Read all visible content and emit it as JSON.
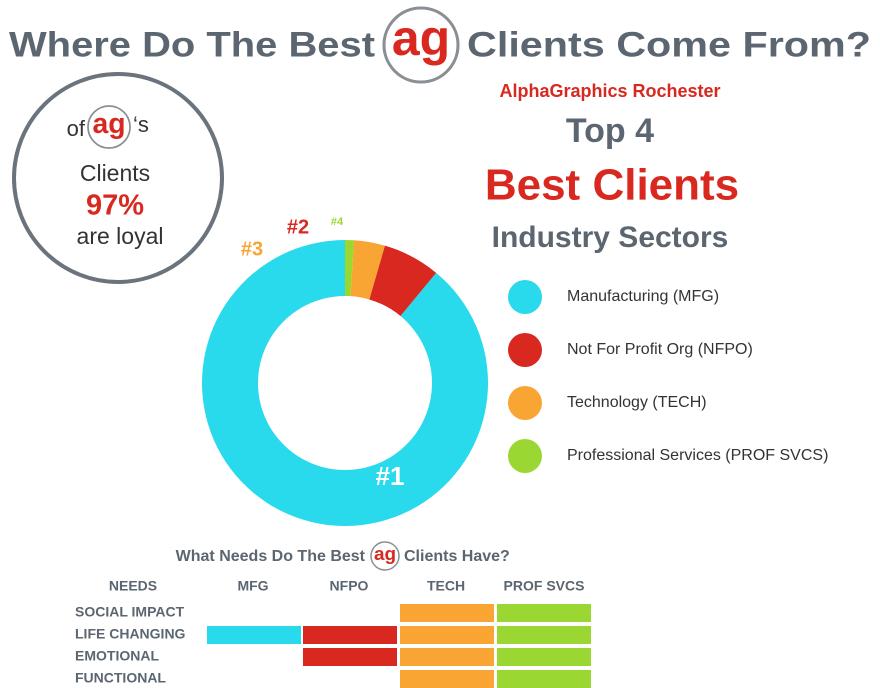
{
  "header": {
    "title_before": "Where Do The Best",
    "logo": "ag",
    "title_after": "Clients Come From?",
    "subtitle": "AlphaGraphics Rochester"
  },
  "badge": {
    "line1": "of",
    "line1_after": "‘s",
    "line2": "Clients",
    "percent": "97%",
    "line3": "are loyal"
  },
  "chart_data": {
    "type": "donut",
    "pretitle": "Top 4",
    "title": "Best Clients",
    "subtitle": "Industry Sectors",
    "categories": [
      "Manufacturing (MFG)",
      "Not For Profit Org (NFPO)",
      "Technology (TECH)",
      "Professional Services (PROF SVCS)"
    ],
    "values": [
      89,
      6.5,
      3.5,
      1
    ],
    "colors": [
      "#29d9ec",
      "#d8281f",
      "#f9a533",
      "#9bd732"
    ],
    "rank_labels": [
      "#1",
      "#2",
      "#3",
      "#4"
    ],
    "legend": "right"
  },
  "needs_table": {
    "title_before": "What Needs Do The Best",
    "title_after": "Clients Have?",
    "header": [
      "NEEDS",
      "MFG",
      "NFPO",
      "TECH",
      "PROF SVCS"
    ],
    "rows": [
      "SOCIAL IMPACT",
      "LIFE CHANGING",
      "EMOTIONAL",
      "FUNCTIONAL"
    ],
    "cells": [
      [
        false,
        false,
        true,
        true
      ],
      [
        true,
        true,
        true,
        true
      ],
      [
        false,
        true,
        true,
        true
      ],
      [
        false,
        false,
        true,
        true
      ]
    ]
  }
}
